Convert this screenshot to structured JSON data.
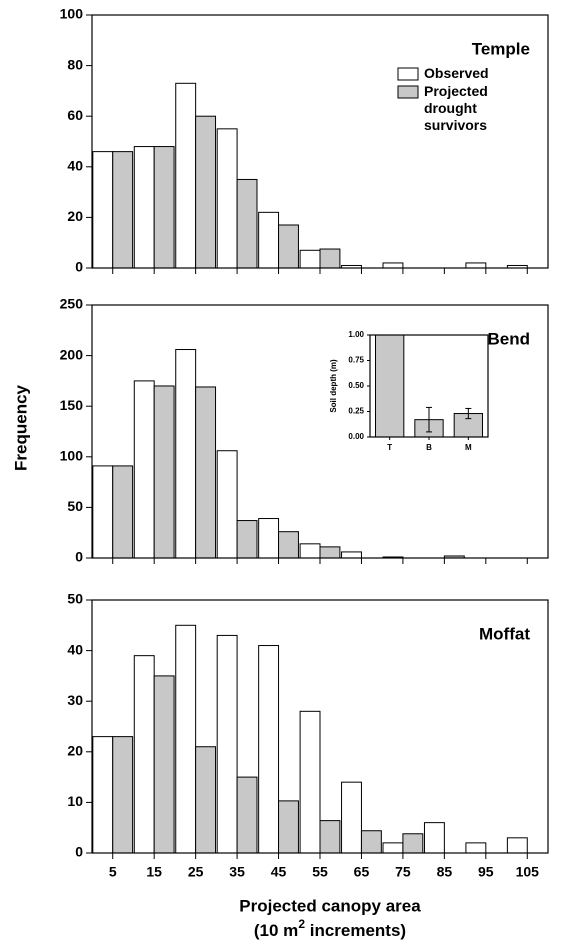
{
  "chart_data": [
    {
      "type": "bar",
      "title": "Temple",
      "categories": [
        "5",
        "15",
        "25",
        "35",
        "45",
        "55",
        "65",
        "75",
        "85",
        "95",
        "105"
      ],
      "series": [
        {
          "name": "Observed",
          "color": "#ffffff",
          "values": [
            46,
            48,
            73,
            55,
            22,
            7,
            1,
            2,
            0,
            2,
            1
          ]
        },
        {
          "name": "Projected drought survivors",
          "color": "#c8c8c8",
          "values": [
            46,
            48,
            60,
            35,
            17,
            7.5,
            0,
            0,
            0,
            0,
            0
          ]
        }
      ],
      "ylim": [
        0,
        100
      ],
      "yticks": [
        0,
        20,
        40,
        60,
        80,
        100
      ],
      "legend": "upper right"
    },
    {
      "type": "bar",
      "title": "Bend",
      "ylabel": "Frequency",
      "categories": [
        "5",
        "15",
        "25",
        "35",
        "45",
        "55",
        "65",
        "75",
        "85",
        "95",
        "105"
      ],
      "series": [
        {
          "name": "Observed",
          "color": "#ffffff",
          "values": [
            91,
            175,
            206,
            106,
            39,
            14,
            6,
            1,
            0,
            0,
            0
          ]
        },
        {
          "name": "Projected drought survivors",
          "color": "#c8c8c8",
          "values": [
            91,
            170,
            169,
            37,
            26,
            11,
            0,
            0,
            2,
            0,
            0
          ]
        }
      ],
      "ylim": [
        0,
        250
      ],
      "yticks": [
        0,
        50,
        100,
        150,
        200,
        250
      ]
    },
    {
      "type": "bar",
      "title": "Moffat",
      "xlabel": [
        "Projected canopy area",
        "(10 m",
        "2",
        " increments)"
      ],
      "categories": [
        "5",
        "15",
        "25",
        "35",
        "45",
        "55",
        "65",
        "75",
        "85",
        "95",
        "105"
      ],
      "series": [
        {
          "name": "Observed",
          "color": "#ffffff",
          "values": [
            23,
            39,
            45,
            43,
            41,
            28,
            14,
            2,
            6,
            2,
            3
          ]
        },
        {
          "name": "Projected drought survivors",
          "color": "#c8c8c8",
          "values": [
            23,
            35,
            21,
            15,
            10.3,
            6.4,
            4.4,
            3.8,
            0,
            0,
            0
          ]
        }
      ],
      "ylim": [
        0,
        50
      ],
      "yticks": [
        0,
        10,
        20,
        30,
        40,
        50
      ],
      "show_xticklabels": true
    },
    {
      "type": "bar",
      "ylabel": "Soil depth (m)",
      "categories": [
        "T",
        "B",
        "M"
      ],
      "series": [
        {
          "color": "#c8c8c8",
          "values": [
            1.0,
            0.17,
            0.23
          ],
          "errors": [
            null,
            0.12,
            0.05
          ]
        }
      ],
      "ylim": [
        0,
        1
      ],
      "yticks": [
        {
          "value": 0,
          "label": "0.00"
        },
        {
          "value": 0.25,
          "label": "0.25"
        },
        {
          "value": 0.5,
          "label": "0.50"
        },
        {
          "value": 0.75,
          "label": "0.75"
        },
        {
          "value": 1,
          "label": "1.00"
        }
      ],
      "show_xticklabels": true
    }
  ]
}
